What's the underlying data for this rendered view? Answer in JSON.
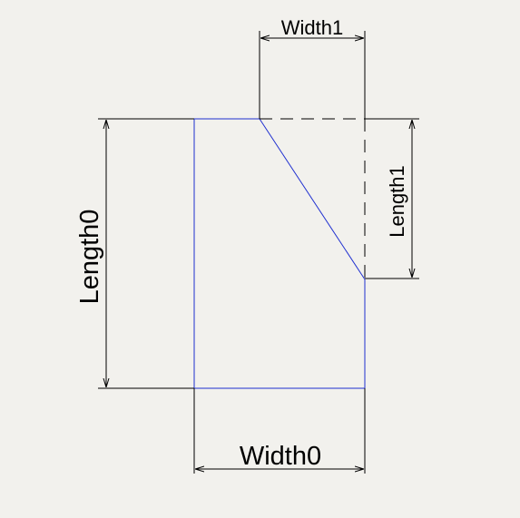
{
  "diagram": {
    "labels": {
      "width1": "Width1",
      "length1": "Length1",
      "length0": "Length0",
      "width0": "Width0"
    },
    "colors": {
      "background": "#f2f1ed",
      "shape_outline": "#1f2fd0",
      "dimension_line": "#000000"
    }
  }
}
